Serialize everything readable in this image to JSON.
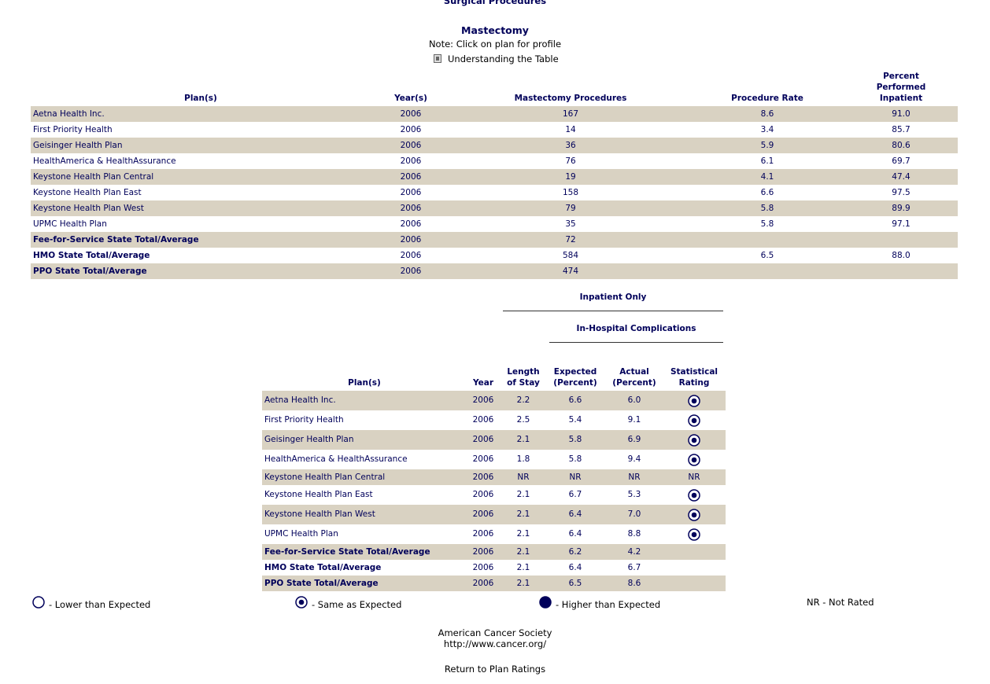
{
  "header": {
    "section": "Surgical Procedures",
    "title": "Mastectomy",
    "note": "Note: Click on plan for profile",
    "help": "Understanding the Table"
  },
  "table1": {
    "columns": [
      "Plan(s)",
      "Year(s)",
      "Mastectomy Procedures",
      "Procedure Rate",
      "Percent Performed Inpatient"
    ],
    "plans": [
      [
        "Aetna Health Inc.",
        "2006",
        "167",
        "8.6",
        "91.0"
      ],
      [
        "First Priority Health",
        "2006",
        "14",
        "3.4",
        "85.7"
      ],
      [
        "Geisinger Health Plan",
        "2006",
        "36",
        "5.9",
        "80.6"
      ],
      [
        "HealthAmerica & HealthAssurance",
        "2006",
        "76",
        "6.1",
        "69.7"
      ],
      [
        "Keystone Health Plan Central",
        "2006",
        "19",
        "4.1",
        "47.4"
      ],
      [
        "Keystone Health Plan East",
        "2006",
        "158",
        "6.6",
        "97.5"
      ],
      [
        "Keystone Health Plan West",
        "2006",
        "79",
        "5.8",
        "89.9"
      ],
      [
        "UPMC Health Plan",
        "2006",
        "35",
        "5.8",
        "97.1"
      ]
    ],
    "totals": [
      [
        "Fee-for-Service State Total/Average",
        "2006",
        "72",
        null,
        null
      ],
      [
        "HMO State Total/Average",
        "2006",
        "584",
        "6.5",
        "88.0"
      ],
      [
        "PPO State Total/Average",
        "2006",
        "474",
        null,
        null
      ]
    ]
  },
  "table2": {
    "group": "Inpatient Only",
    "subgroup": "In-Hospital Complications",
    "columns": [
      "Plan(s)",
      "Year",
      "Length of Stay",
      "Expected (Percent)",
      "Actual (Percent)",
      "Statistical Rating"
    ],
    "plans": [
      [
        "Aetna Health Inc.",
        "2006",
        "2.2",
        "6.6",
        "6.0",
        "Same as Expected"
      ],
      [
        "First Priority Health",
        "2006",
        "2.5",
        "5.4",
        "9.1",
        "Same as Expected"
      ],
      [
        "Geisinger Health Plan",
        "2006",
        "2.1",
        "5.8",
        "6.9",
        "Same as Expected"
      ],
      [
        "HealthAmerica & HealthAssurance",
        "2006",
        "1.8",
        "5.8",
        "9.4",
        "Same as Expected"
      ],
      [
        "Keystone Health Plan Central",
        "2006",
        "NR",
        "NR",
        "NR",
        "NR"
      ],
      [
        "Keystone Health Plan East",
        "2006",
        "2.1",
        "6.7",
        "5.3",
        "Same as Expected"
      ],
      [
        "Keystone Health Plan West",
        "2006",
        "2.1",
        "6.4",
        "7.0",
        "Same as Expected"
      ],
      [
        "UPMC Health Plan",
        "2006",
        "2.1",
        "6.4",
        "8.8",
        "Same as Expected"
      ]
    ],
    "totals": [
      [
        "Fee-for-Service State Total/Average",
        "2006",
        "2.1",
        "6.2",
        "4.2",
        null
      ],
      [
        "HMO State Total/Average",
        "2006",
        "2.1",
        "6.4",
        "6.7",
        null
      ],
      [
        "PPO State Total/Average",
        "2006",
        "2.1",
        "6.5",
        "8.6",
        null
      ]
    ]
  },
  "legend": [
    "- Lower than Expected",
    "- Same as Expected",
    "- Higher than Expected",
    "NR - Not Rated"
  ],
  "footer": {
    "org": "American Cancer Society",
    "url": "http://www.cancer.org/",
    "back": "Return to Plan Ratings"
  }
}
